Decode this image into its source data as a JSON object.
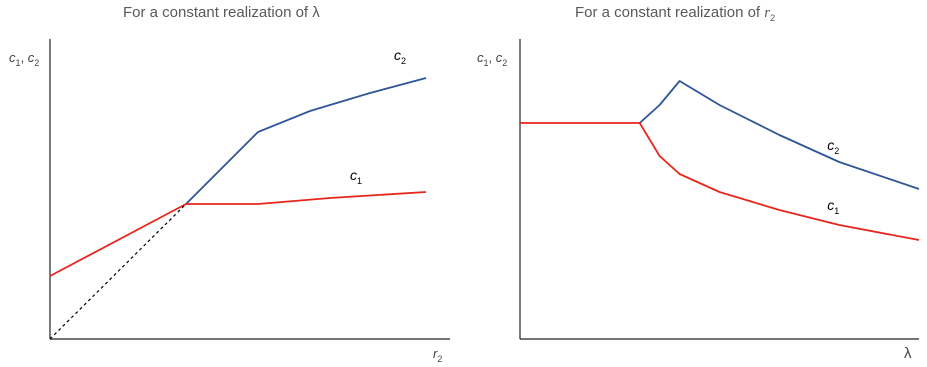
{
  "chart_data": [
    {
      "type": "line",
      "title": "For a constant realization of λ",
      "title_parts": {
        "prefix": "For a constant realization of ",
        "var": "λ",
        "var_sub": ""
      },
      "xlabel": {
        "base": "r",
        "sub": "2"
      },
      "ylabel": {
        "base1": "c",
        "sub1": "1",
        "sep": ", ",
        "base2": "c",
        "sub2": "2"
      },
      "xlim": [
        0,
        10
      ],
      "ylim": [
        0,
        10
      ],
      "grid": false,
      "legend": "none",
      "series": [
        {
          "name": "c2",
          "label_base": "c",
          "label_sub": "2",
          "color": "#2E5597",
          "style": "solid",
          "x": [
            3.4,
            5.2,
            6.5,
            8.0,
            9.4
          ],
          "y": [
            4.5,
            6.9,
            7.6,
            8.2,
            8.7
          ]
        },
        {
          "name": "c1",
          "label_base": "c",
          "label_sub": "1",
          "color": "#E8261C",
          "style": "solid",
          "x": [
            0.0,
            3.4,
            5.2,
            7.0,
            9.4
          ],
          "y": [
            2.1,
            4.5,
            4.5,
            4.7,
            4.9
          ]
        },
        {
          "name": "",
          "color": "#000000",
          "style": "dotted",
          "x": [
            0.0,
            3.4
          ],
          "y": [
            0.0,
            4.5
          ]
        }
      ],
      "curve_labels": [
        {
          "series": "c2",
          "x": 8.6,
          "y": 9.3
        },
        {
          "series": "c1",
          "x": 7.5,
          "y": 5.3
        }
      ]
    },
    {
      "type": "line",
      "title": "For a constant realization of r2",
      "title_parts": {
        "prefix": "For a constant realization of ",
        "var": "r",
        "var_sub": "2"
      },
      "xlabel": {
        "base": "λ",
        "sub": ""
      },
      "ylabel": {
        "base1": "c",
        "sub1": "1",
        "sep": ", ",
        "base2": "c",
        "sub2": "2"
      },
      "xlim": [
        0,
        10
      ],
      "ylim": [
        0,
        10
      ],
      "grid": false,
      "legend": "none",
      "series": [
        {
          "name": "c2",
          "label_base": "c",
          "label_sub": "2",
          "color": "#2E5597",
          "style": "solid",
          "x": [
            3.0,
            3.5,
            4.0,
            5.0,
            6.5,
            8.0,
            10.0
          ],
          "y": [
            7.2,
            7.8,
            8.6,
            7.8,
            6.8,
            5.9,
            5.0
          ]
        },
        {
          "name": "c1",
          "label_base": "c",
          "label_sub": "1",
          "color": "#E8261C",
          "style": "solid",
          "x": [
            0.0,
            3.0,
            3.5,
            4.0,
            5.0,
            6.5,
            8.0,
            10.0
          ],
          "y": [
            7.2,
            7.2,
            6.1,
            5.5,
            4.9,
            4.3,
            3.8,
            3.3
          ]
        }
      ],
      "curve_labels": [
        {
          "series": "c2",
          "x": 7.7,
          "y": 6.3
        },
        {
          "series": "c1",
          "x": 7.7,
          "y": 4.3
        }
      ]
    }
  ]
}
